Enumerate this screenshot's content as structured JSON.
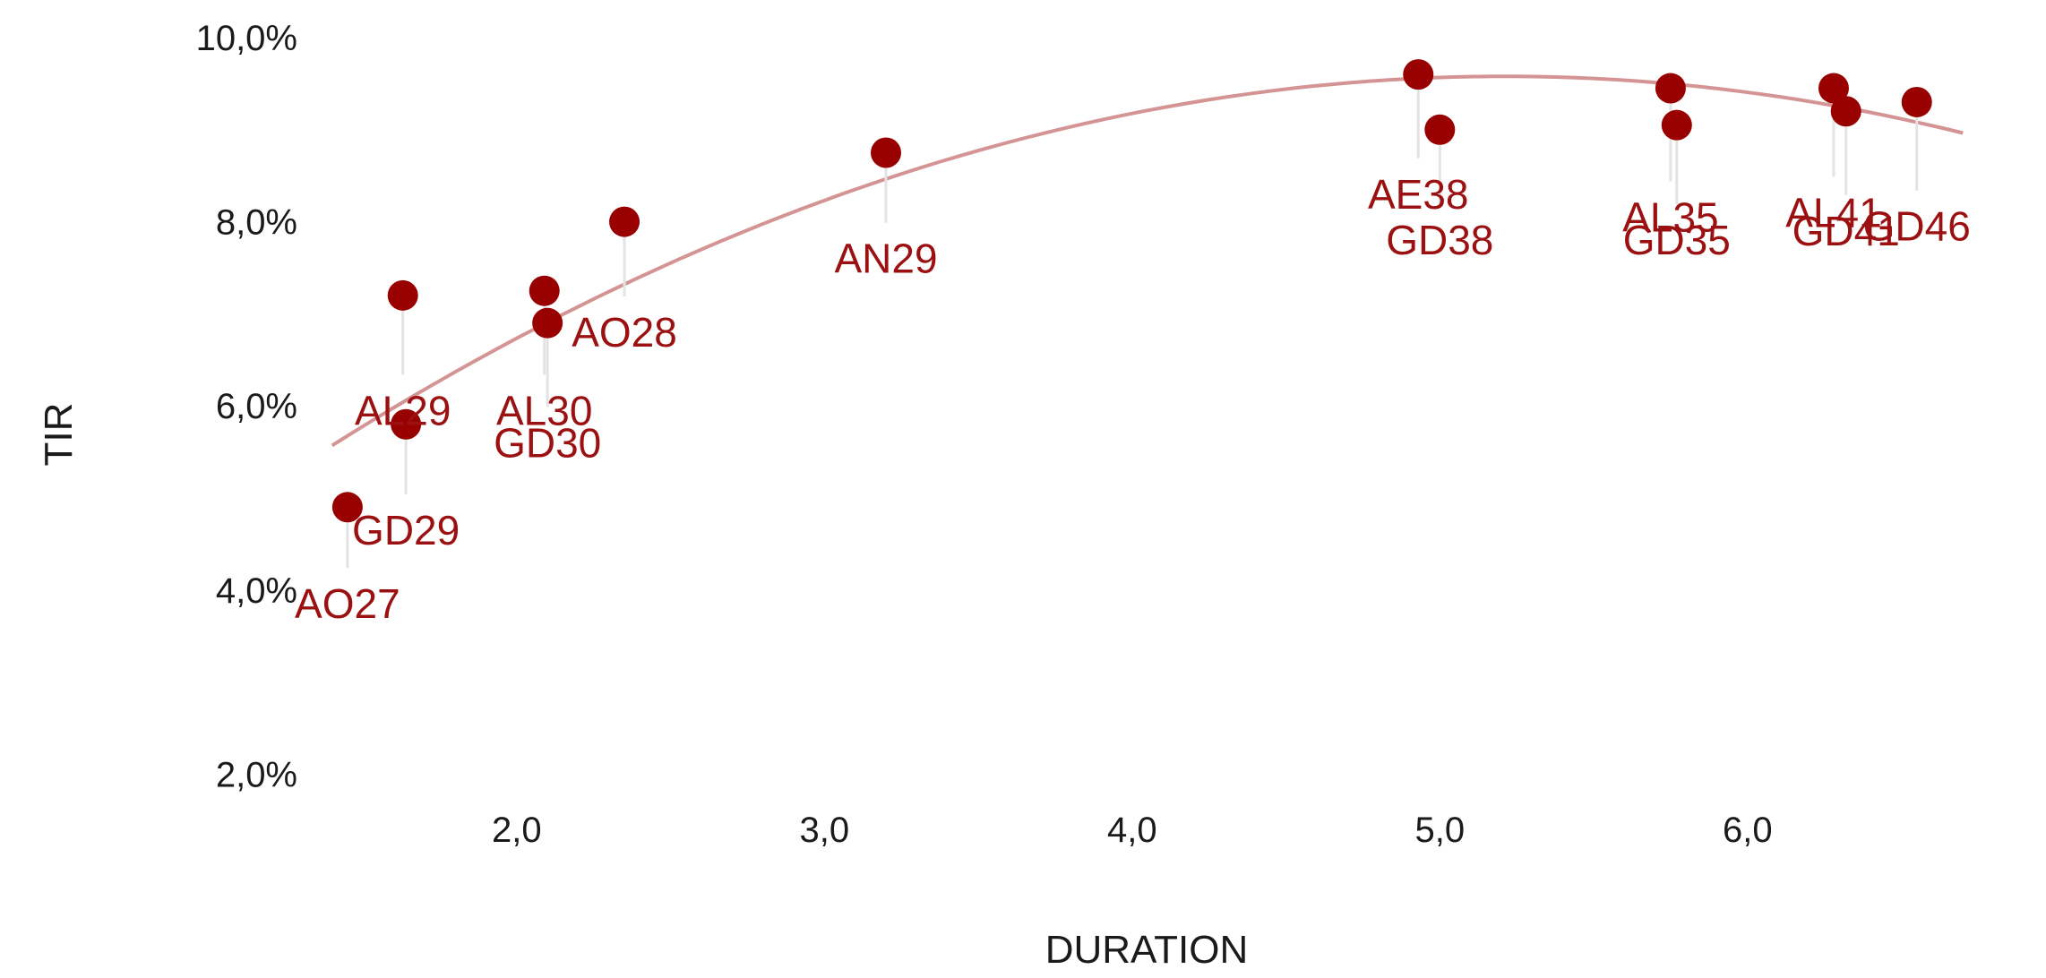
{
  "chart_data": {
    "type": "scatter",
    "xlabel": "DURATION",
    "ylabel": "TIR",
    "xlim": [
      1.3,
      6.8
    ],
    "ylim": [
      1.5,
      10.2
    ],
    "x_ticks": [
      "2,0",
      "3,0",
      "4,0",
      "5,0",
      "6,0"
    ],
    "x_tick_values": [
      2,
      3,
      4,
      5,
      6
    ],
    "y_ticks": [
      "2,0%",
      "4,0%",
      "6,0%",
      "8,0%",
      "10,0%"
    ],
    "y_tick_values": [
      2,
      4,
      6,
      8,
      10
    ],
    "grid": false,
    "point_color": "#990000",
    "label_color": "#9b1010",
    "trend_color": "#d49494",
    "trend": {
      "type": "quadratic",
      "coefficients": [
        -0.2765,
        2.88,
        2.08
      ],
      "x_range": [
        1.4,
        6.7
      ]
    },
    "points": [
      {
        "label": "AO27",
        "x": 1.45,
        "y": 4.9,
        "label_y": 3.85
      },
      {
        "label": "GD29",
        "x": 1.64,
        "y": 5.8,
        "label_y": 4.65
      },
      {
        "label": "AL29",
        "x": 1.63,
        "y": 7.2,
        "label_y": 5.95
      },
      {
        "label": "AL30",
        "x": 2.09,
        "y": 7.25,
        "label_y": 5.95
      },
      {
        "label": "GD30",
        "x": 2.1,
        "y": 6.9,
        "label_y": 5.6
      },
      {
        "label": "AO28",
        "x": 2.35,
        "y": 8.0,
        "label_y": 6.8
      },
      {
        "label": "AN29",
        "x": 3.2,
        "y": 8.75,
        "label_y": 7.6
      },
      {
        "label": "AE38",
        "x": 4.93,
        "y": 9.6,
        "label_y": 8.3
      },
      {
        "label": "GD38",
        "x": 5.0,
        "y": 9.0,
        "label_y": 7.8
      },
      {
        "label": "AL35",
        "x": 5.75,
        "y": 9.45,
        "label_y": 8.05
      },
      {
        "label": "GD35",
        "x": 5.77,
        "y": 9.05,
        "label_y": 7.8
      },
      {
        "label": "AL41",
        "x": 6.28,
        "y": 9.45,
        "label_y": 8.1
      },
      {
        "label": "GD41",
        "x": 6.32,
        "y": 9.2,
        "label_y": 7.9
      },
      {
        "label": "GD46",
        "x": 6.55,
        "y": 9.3,
        "label_y": 7.95
      }
    ]
  }
}
